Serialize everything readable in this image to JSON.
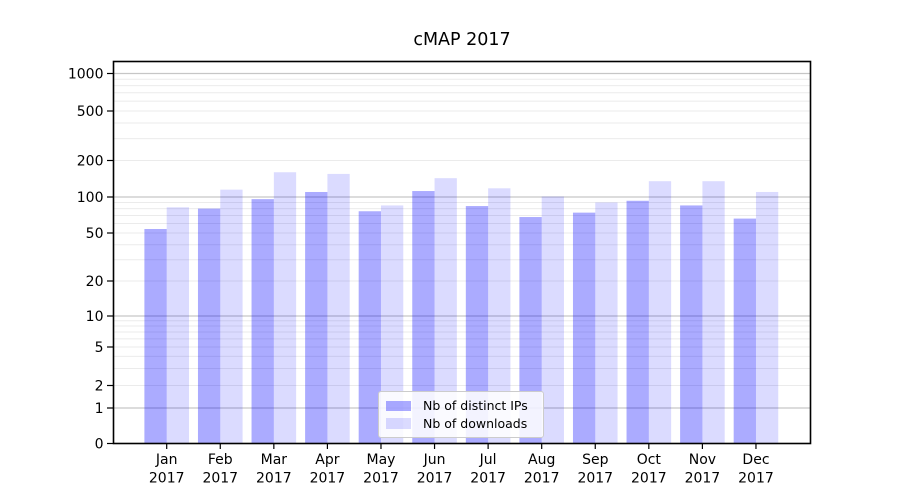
{
  "chart_data": {
    "type": "bar",
    "title": "cMAP 2017",
    "categories": [
      "Jan",
      "Feb",
      "Mar",
      "Apr",
      "May",
      "Jun",
      "Jul",
      "Aug",
      "Sep",
      "Oct",
      "Nov",
      "Dec"
    ],
    "year_label": "2017",
    "series": [
      {
        "name": "Nb of distinct IPs",
        "color": "rgba(0,0,255,0.33)",
        "values": [
          54,
          80,
          96,
          110,
          76,
          112,
          84,
          68,
          74,
          93,
          85,
          66
        ]
      },
      {
        "name": "Nb of downloads",
        "color": "rgba(0,0,255,0.14)",
        "values": [
          82,
          115,
          160,
          155,
          85,
          143,
          118,
          101,
          90,
          135,
          135,
          110
        ]
      }
    ],
    "yscale": "symlog",
    "yticks": [
      0,
      1,
      2,
      5,
      10,
      20,
      50,
      100,
      200,
      500,
      1000
    ],
    "ylim": [
      0,
      1260
    ],
    "xlabel": "",
    "ylabel": "",
    "legend_position": "lower center",
    "grid": "both",
    "major_grid_color": "#c6c6c6",
    "minor_grid_color": "#ebebeb",
    "axis_color": "#000000",
    "background": "#ffffff"
  }
}
